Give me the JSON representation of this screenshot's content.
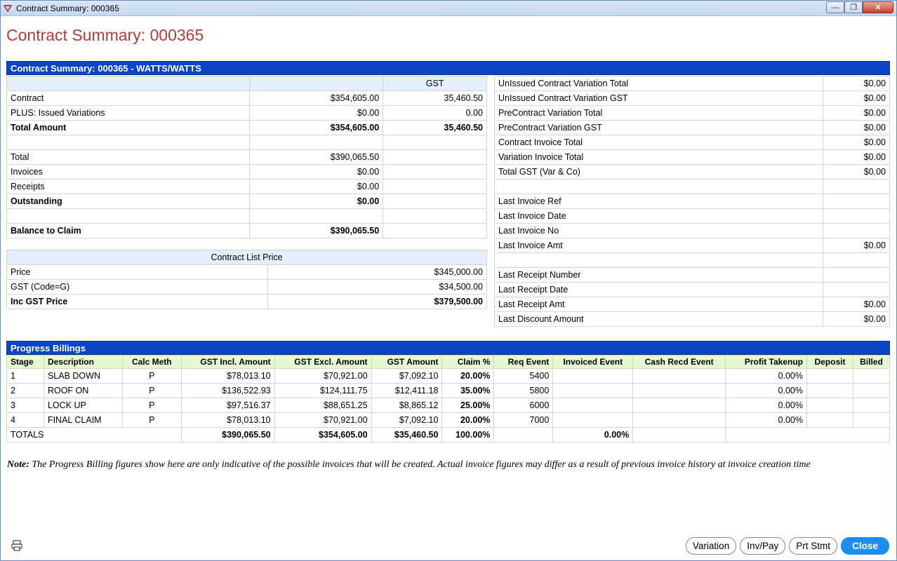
{
  "window": {
    "title": "Contract Summary: 000365"
  },
  "page_title": "Contract Summary: 000365",
  "summary_header": "Contract Summary: 000365 - WATTS/WATTS",
  "left": {
    "gst_header": "GST",
    "rows": [
      {
        "label": "Contract",
        "amount": "$354,605.00",
        "gst": "35,460.50",
        "bold": false
      },
      {
        "label": "PLUS: Issued Variations",
        "amount": "$0.00",
        "gst": "0.00",
        "bold": false
      },
      {
        "label": "Total Amount",
        "amount": "$354,605.00",
        "gst": "35,460.50",
        "bold": true
      },
      {
        "label": "",
        "amount": "",
        "gst": "",
        "bold": false
      },
      {
        "label": "Total",
        "amount": "$390,065.50",
        "gst": "",
        "bold": false
      },
      {
        "label": "Invoices",
        "amount": "$0.00",
        "gst": "",
        "bold": false
      },
      {
        "label": "Receipts",
        "amount": "$0.00",
        "gst": "",
        "bold": false
      },
      {
        "label": "Outstanding",
        "amount": "$0.00",
        "gst": "",
        "bold": true
      },
      {
        "label": "",
        "amount": "",
        "gst": "",
        "bold": false
      },
      {
        "label": "Balance to Claim",
        "amount": "$390,065.50",
        "gst": "",
        "bold": true
      }
    ]
  },
  "list_price": {
    "header": "Contract List Price",
    "rows": [
      {
        "label": "Price",
        "value": "$345,000.00",
        "bold": false
      },
      {
        "label": "GST (Code=G)",
        "value": "$34,500.00",
        "bold": false
      },
      {
        "label": "Inc GST Price",
        "value": "$379,500.00",
        "bold": true
      }
    ]
  },
  "right": {
    "rows": [
      {
        "label": "UnIssued Contract Variation Total",
        "value": "$0.00"
      },
      {
        "label": "UnIssued Contract Variation GST",
        "value": "$0.00"
      },
      {
        "label": "PreContract Variation Total",
        "value": "$0.00"
      },
      {
        "label": "PreContract Variation GST",
        "value": "$0.00"
      },
      {
        "label": "Contract Invoice Total",
        "value": "$0.00"
      },
      {
        "label": "Variation Invoice Total",
        "value": "$0.00"
      },
      {
        "label": "Total GST (Var & Co)",
        "value": "$0.00"
      },
      {
        "label": "",
        "value": ""
      },
      {
        "label": "Last Invoice Ref",
        "value": ""
      },
      {
        "label": "Last Invoice Date",
        "value": ""
      },
      {
        "label": "Last Invoice No",
        "value": ""
      },
      {
        "label": "Last Invoice Amt",
        "value": "$0.00"
      },
      {
        "label": "",
        "value": ""
      },
      {
        "label": "Last Receipt Number",
        "value": ""
      },
      {
        "label": "Last Receipt Date",
        "value": ""
      },
      {
        "label": "Last Receipt Amt",
        "value": "$0.00"
      },
      {
        "label": "Last Discount Amount",
        "value": "$0.00"
      }
    ]
  },
  "progress": {
    "header": "Progress Billings",
    "columns": [
      "Stage",
      "Description",
      "Calc Meth",
      "GST Incl. Amount",
      "GST Excl. Amount",
      "GST Amount",
      "Claim %",
      "Req Event",
      "Invoiced Event",
      "Cash Recd Event",
      "Profit Takenup",
      "Deposit",
      "Billed"
    ],
    "rows": [
      [
        "1",
        "SLAB DOWN",
        "P",
        "$78,013.10",
        "$70,921.00",
        "$7,092.10",
        "20.00%",
        "5400",
        "",
        "",
        "0.00%",
        "",
        ""
      ],
      [
        "2",
        "ROOF ON",
        "P",
        "$136,522.93",
        "$124,111.75",
        "$12,411.18",
        "35.00%",
        "5800",
        "",
        "",
        "0.00%",
        "",
        ""
      ],
      [
        "3",
        "LOCK UP",
        "P",
        "$97,516.37",
        "$88,651.25",
        "$8,865.12",
        "25.00%",
        "6000",
        "",
        "",
        "0.00%",
        "",
        ""
      ],
      [
        "4",
        "FINAL CLAIM",
        "P",
        "$78,013.10",
        "$70,921.00",
        "$7,092.10",
        "20.00%",
        "7000",
        "",
        "",
        "0.00%",
        "",
        ""
      ]
    ],
    "totals": {
      "label": "TOTALS",
      "gst_incl": "$390,065.50",
      "gst_excl": "$354,605.00",
      "gst": "$35,460.50",
      "claim": "100.00%",
      "invoiced": "0.00%"
    }
  },
  "note": {
    "label": "Note:",
    "text": " The Progress Billing figures show here are only indicative of the possible invoices that will be created. Actual invoice figures may differ as a result of previous invoice history at invoice creation time"
  },
  "buttons": {
    "variation": "Variation",
    "invpay": "Inv/Pay",
    "prtstmt": "Prt Stmt",
    "close": "Close"
  },
  "colors": {
    "header_blue": "#0b44c6",
    "title_red": "#b63a3a",
    "progress_header_green": "#e6f7d2",
    "close_button": "#1e8df0"
  }
}
